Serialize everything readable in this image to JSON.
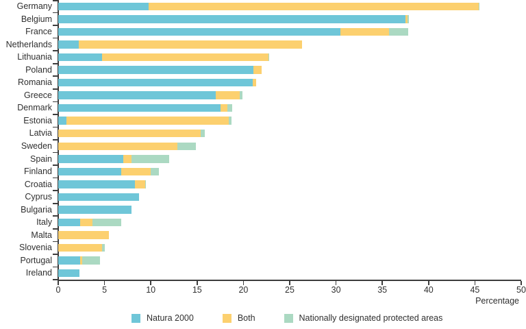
{
  "chart_data": {
    "type": "bar",
    "orientation": "horizontal",
    "stacked": true,
    "title": "",
    "xlabel": "Percentage",
    "xlim": [
      0,
      50
    ],
    "x_ticks": [
      0,
      5,
      10,
      15,
      20,
      25,
      30,
      35,
      40,
      45,
      50
    ],
    "grid": false,
    "legend_position": "bottom",
    "categories": [
      "Germany",
      "Belgium",
      "France",
      "Netherlands",
      "Lithuania",
      "Poland",
      "Romania",
      "Greece",
      "Denmark",
      "Estonia",
      "Latvia",
      "Sweden",
      "Spain",
      "Finland",
      "Croatia",
      "Cyprus",
      "Bulgaria",
      "Italy",
      "Malta",
      "Slovenia",
      "Portugal",
      "Ireland"
    ],
    "series": [
      {
        "name": "Natura 2000",
        "color": "#6FC6D8",
        "values": [
          9.8,
          37.5,
          30.5,
          2.2,
          4.7,
          21.1,
          21.0,
          17.0,
          17.5,
          0.9,
          0.0,
          0.0,
          7.0,
          6.8,
          8.3,
          8.7,
          7.9,
          2.4,
          0.0,
          0.0,
          2.4,
          2.3
        ]
      },
      {
        "name": "Both",
        "color": "#FCD06F",
        "values": [
          35.6,
          0.2,
          5.2,
          24.1,
          18.0,
          0.9,
          0.4,
          2.6,
          0.8,
          17.5,
          15.4,
          12.9,
          0.9,
          3.2,
          1.1,
          0.0,
          0.0,
          1.3,
          5.5,
          4.7,
          0.2,
          0.0
        ]
      },
      {
        "name": "Nationally designated protected areas",
        "color": "#ABD9C2",
        "values": [
          0.1,
          0.2,
          2.1,
          0.0,
          0.1,
          0.0,
          0.0,
          0.3,
          0.5,
          0.3,
          0.4,
          2.0,
          4.1,
          0.9,
          0.1,
          0.0,
          0.0,
          3.1,
          0.0,
          0.3,
          1.9,
          0.0
        ]
      }
    ],
    "totals": [
      45.5,
      37.9,
      37.8,
      26.3,
      22.8,
      22.0,
      21.4,
      19.9,
      18.8,
      18.7,
      15.8,
      14.9,
      12.0,
      10.9,
      9.5,
      8.7,
      7.9,
      6.8,
      5.5,
      5.0,
      4.5,
      2.3
    ]
  },
  "colors": {
    "axis": "#3c3c3c",
    "text": "#2f2f2f",
    "background": "#ffffff"
  }
}
